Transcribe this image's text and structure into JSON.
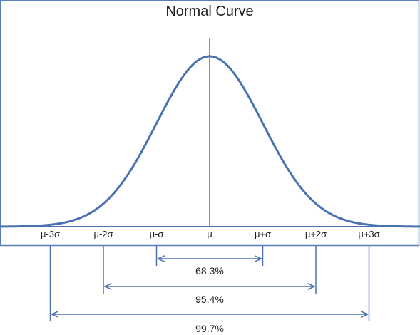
{
  "title": "Normal Curve",
  "axis": {
    "ticks": [
      "μ-3σ",
      "μ-2σ",
      "μ-σ",
      "μ",
      "μ+σ",
      "μ+2σ",
      "μ+3σ"
    ],
    "tick_positions_sigma": [
      -3,
      -2,
      -1,
      0,
      1,
      2,
      3
    ],
    "range_sigma": [
      -4,
      4
    ]
  },
  "intervals": [
    {
      "label": "68.3%",
      "from_sigma": -1,
      "to_sigma": 1
    },
    {
      "label": "95.4%",
      "from_sigma": -2,
      "to_sigma": 2
    },
    {
      "label": "99.7%",
      "from_sigma": -3,
      "to_sigma": 3
    }
  ],
  "colors": {
    "curve": "#4a72b0",
    "lines": "#4a72b0",
    "frame": "#5a7fb8",
    "text": "#1f1f1f"
  }
}
